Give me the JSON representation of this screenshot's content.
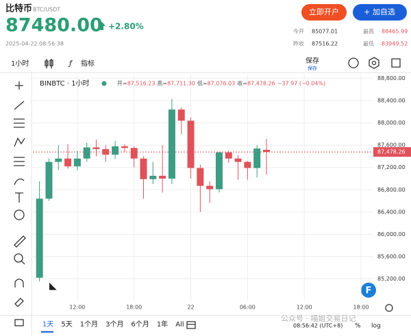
{
  "header": {
    "name": "比特币",
    "pair": "BTC/USDT",
    "price": "87480.00",
    "change": "+2.80%",
    "time": "2025-04-22 08:56:38",
    "buttons": [
      "立即开户",
      "+ 加自选"
    ],
    "stats": [
      {
        "label": "今开",
        "value": "85077.01"
      },
      {
        "label": "最高",
        "value": "88465.99"
      },
      {
        "label": "昨收",
        "value": "87516.22"
      },
      {
        "label": "最低",
        "value": "83949.52"
      }
    ]
  },
  "toolbar": {
    "interval": "1小时",
    "indicators": "指标",
    "save": "保存",
    "save_sub": "保存"
  },
  "chart_data": {
    "type": "candlestick",
    "legend_title": "BINBTC · 1小时",
    "ohlc": [
      {
        "label": "开=",
        "value": "87,516.23"
      },
      {
        "label": "高=",
        "value": "87,711.30"
      },
      {
        "label": "低=",
        "value": "87,076.03"
      },
      {
        "label": "收=",
        "value": "87,478.26"
      }
    ],
    "ohlc_change": "−37.97 (−0.04%)",
    "categories": [
      null,
      null,
      null,
      null,
      "12:00",
      null,
      null,
      null,
      null,
      null,
      "18:00",
      null,
      null,
      null,
      null,
      null,
      "22",
      null,
      null,
      null,
      null,
      null,
      "06:00",
      null,
      null
    ],
    "open": [
      85220,
      86640,
      87300,
      87360,
      87220,
      87360,
      87560,
      87530,
      87430,
      87580,
      87550,
      87360,
      86990,
      87050,
      87000,
      88240,
      88040,
      87190,
      86870,
      86810,
      87470,
      87360,
      87300,
      87190,
      87516.23
    ],
    "high": [
      86950,
      87360,
      87600,
      87620,
      87500,
      87640,
      87700,
      87600,
      87680,
      87620,
      87580,
      87400,
      87300,
      87600,
      88430,
      88280,
      88100,
      87250,
      86950,
      87480,
      87500,
      87420,
      87320,
      87600,
      87711.3
    ],
    "low": [
      85150,
      86600,
      87150,
      87180,
      87150,
      87300,
      87400,
      87300,
      87350,
      87480,
      87200,
      86640,
      86900,
      86750,
      86900,
      87800,
      87000,
      86400,
      86560,
      86750,
      87280,
      86980,
      86980,
      87020,
      87076.03
    ],
    "close": [
      86640,
      87300,
      87360,
      87220,
      87360,
      87560,
      87530,
      87430,
      87580,
      87550,
      87360,
      86990,
      87050,
      87000,
      88240,
      88040,
      87190,
      86870,
      86810,
      87470,
      87360,
      87300,
      87190,
      87540,
      87478.26
    ],
    "up_color": "#3d9c83",
    "down_color": "#e0525a",
    "last_price": {
      "value": 87478.26,
      "label": "87,478.26"
    },
    "xlim": [
      -0.7,
      35.3
    ],
    "xticks": [
      {
        "value": 4,
        "label": "12:00"
      },
      {
        "value": 10,
        "label": "18:00"
      },
      {
        "value": 16,
        "label": "22"
      },
      {
        "value": 22,
        "label": "06:00"
      },
      {
        "value": 28,
        "label": "12:00"
      },
      {
        "value": 34,
        "label": "18:00"
      }
    ],
    "ylim": [
      84800,
      88880
    ],
    "yticks": [
      {
        "value": 85200,
        "label": "85,200.00"
      },
      {
        "value": 85600,
        "label": "85,600.00"
      },
      {
        "value": 86000,
        "label": "86,000.00"
      },
      {
        "value": 86400,
        "label": "86,400.00"
      },
      {
        "value": 86800,
        "label": "86,800.00"
      },
      {
        "value": 87200,
        "label": "87,200.00"
      },
      {
        "value": 87600,
        "label": "87,600.00"
      },
      {
        "value": 88000,
        "label": "88,000.00"
      },
      {
        "value": 88400,
        "label": "88,400.00"
      },
      {
        "value": 88800,
        "label": "88,800.00"
      }
    ],
    "grid": true
  },
  "footer": {
    "ranges": [
      "1天",
      "5天",
      "1个月",
      "3个月",
      "6个月",
      "1年",
      "All"
    ],
    "time": "08:56:42 (UTC+8)",
    "percent": "%",
    "log": "log",
    "watermark": "公众号 · 喵姐交易日记"
  }
}
